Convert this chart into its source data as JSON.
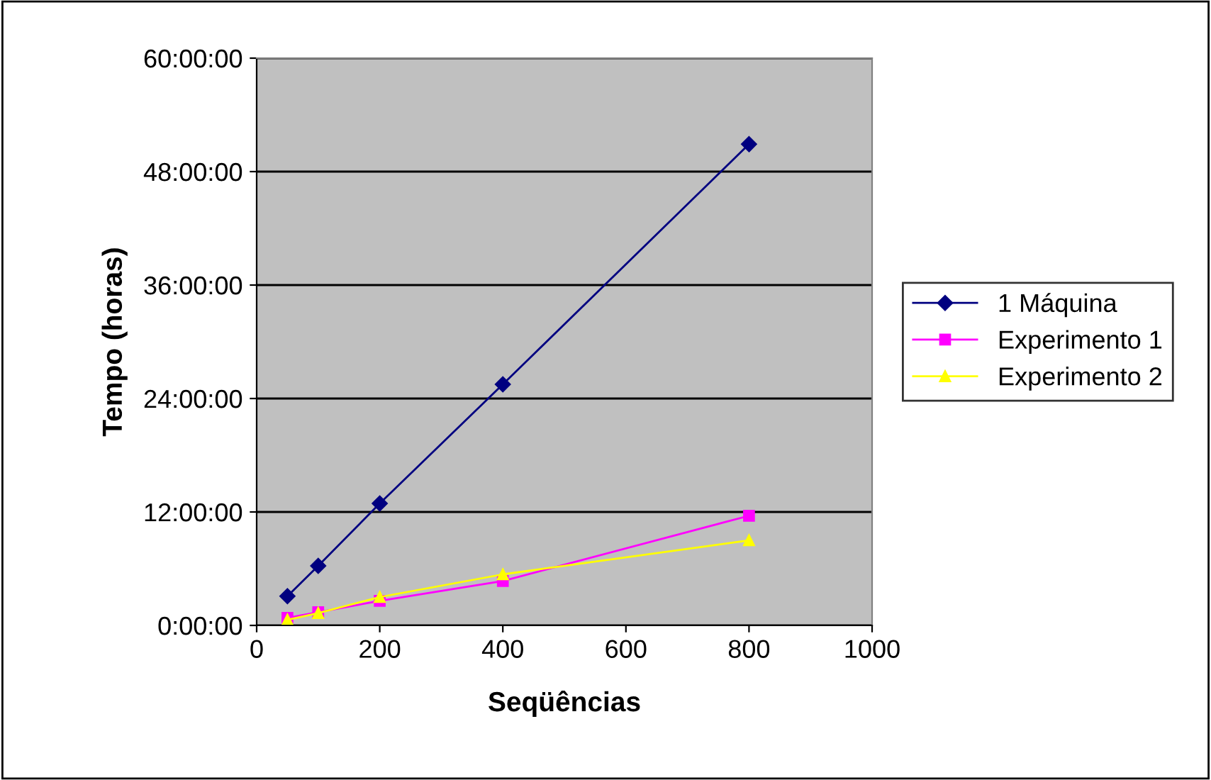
{
  "chart_data": {
    "type": "line",
    "xlabel": "Seqüências",
    "ylabel": "Tempo (horas)",
    "x": [
      50,
      100,
      200,
      400,
      800
    ],
    "series": [
      {
        "name": "1 Máquina",
        "color": "#000080",
        "marker": "diamond",
        "values": [
          3.1,
          6.3,
          12.9,
          25.5,
          50.9
        ]
      },
      {
        "name": "Experimento 1",
        "color": "#ff00ff",
        "marker": "square",
        "values": [
          0.8,
          1.4,
          2.6,
          4.7,
          11.6
        ]
      },
      {
        "name": "Experimento 2",
        "color": "#ffff00",
        "marker": "triangle",
        "values": [
          0.6,
          1.3,
          3.0,
          5.4,
          9.0
        ]
      }
    ],
    "xlim": [
      0,
      1000
    ],
    "xticks": [
      0,
      200,
      400,
      600,
      800,
      1000
    ],
    "ylim": [
      0,
      60
    ],
    "yticks": [
      {
        "value": 0,
        "label": "0:00:00"
      },
      {
        "value": 12,
        "label": "12:00:00"
      },
      {
        "value": 24,
        "label": "24:00:00"
      },
      {
        "value": 36,
        "label": "36:00:00"
      },
      {
        "value": 48,
        "label": "48:00:00"
      },
      {
        "value": 60,
        "label": "60:00:00"
      }
    ],
    "grid": "y",
    "legend": "right",
    "line_style": "solid"
  }
}
